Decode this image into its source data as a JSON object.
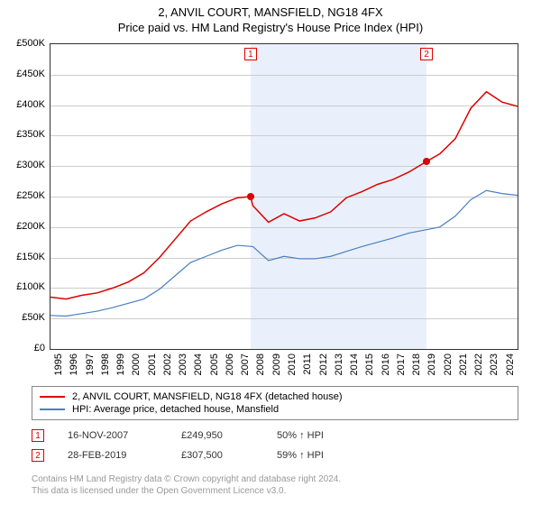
{
  "title": "2, ANVIL COURT, MANSFIELD, NG18 4FX",
  "subtitle": "Price paid vs. HM Land Registry's House Price Index (HPI)",
  "chart": {
    "type": "line",
    "ylim": [
      0,
      500000
    ],
    "ytick_step": 50000,
    "ytick_labels": [
      "£0",
      "£50K",
      "£100K",
      "£150K",
      "£200K",
      "£250K",
      "£300K",
      "£350K",
      "£400K",
      "£450K",
      "£500K"
    ],
    "xlim": [
      1995,
      2025
    ],
    "xtick_labels": [
      "1995",
      "1996",
      "1997",
      "1998",
      "1999",
      "2000",
      "2001",
      "2002",
      "2003",
      "2004",
      "2005",
      "2006",
      "2007",
      "2008",
      "2009",
      "2010",
      "2011",
      "2012",
      "2013",
      "2014",
      "2015",
      "2016",
      "2017",
      "2018",
      "2019",
      "2020",
      "2021",
      "2022",
      "2023",
      "2024"
    ],
    "shaded_ranges": [
      [
        2007.85,
        2019.15
      ]
    ],
    "grid_color": "#cccccc",
    "background_color": "#ffffff",
    "series": [
      {
        "name": "property",
        "color": "#dd0000",
        "width": 1.5,
        "data": [
          [
            1995,
            85000
          ],
          [
            1996,
            82000
          ],
          [
            1997,
            88000
          ],
          [
            1998,
            92000
          ],
          [
            1999,
            100000
          ],
          [
            2000,
            110000
          ],
          [
            2001,
            125000
          ],
          [
            2002,
            150000
          ],
          [
            2003,
            180000
          ],
          [
            2004,
            210000
          ],
          [
            2005,
            225000
          ],
          [
            2006,
            238000
          ],
          [
            2007,
            248000
          ],
          [
            2007.85,
            249950
          ],
          [
            2008,
            235000
          ],
          [
            2009,
            208000
          ],
          [
            2010,
            222000
          ],
          [
            2011,
            210000
          ],
          [
            2012,
            215000
          ],
          [
            2013,
            225000
          ],
          [
            2014,
            248000
          ],
          [
            2015,
            258000
          ],
          [
            2016,
            270000
          ],
          [
            2017,
            278000
          ],
          [
            2018,
            290000
          ],
          [
            2019.15,
            307500
          ],
          [
            2020,
            320000
          ],
          [
            2021,
            345000
          ],
          [
            2022,
            395000
          ],
          [
            2023,
            422000
          ],
          [
            2024,
            405000
          ],
          [
            2025,
            398000
          ]
        ]
      },
      {
        "name": "hpi",
        "color": "#4a7fc4",
        "width": 1.2,
        "data": [
          [
            1995,
            55000
          ],
          [
            1996,
            54000
          ],
          [
            1997,
            58000
          ],
          [
            1998,
            62000
          ],
          [
            1999,
            68000
          ],
          [
            2000,
            75000
          ],
          [
            2001,
            82000
          ],
          [
            2002,
            98000
          ],
          [
            2003,
            120000
          ],
          [
            2004,
            142000
          ],
          [
            2005,
            152000
          ],
          [
            2006,
            162000
          ],
          [
            2007,
            170000
          ],
          [
            2008,
            168000
          ],
          [
            2009,
            145000
          ],
          [
            2010,
            152000
          ],
          [
            2011,
            148000
          ],
          [
            2012,
            148000
          ],
          [
            2013,
            152000
          ],
          [
            2014,
            160000
          ],
          [
            2015,
            168000
          ],
          [
            2016,
            175000
          ],
          [
            2017,
            182000
          ],
          [
            2018,
            190000
          ],
          [
            2019,
            195000
          ],
          [
            2020,
            200000
          ],
          [
            2021,
            218000
          ],
          [
            2022,
            245000
          ],
          [
            2023,
            260000
          ],
          [
            2024,
            255000
          ],
          [
            2025,
            252000
          ]
        ]
      }
    ],
    "markers": [
      {
        "n": "1",
        "x": 2007.85,
        "y": 249950
      },
      {
        "n": "2",
        "x": 2019.15,
        "y": 307500
      }
    ]
  },
  "legend": {
    "items": [
      {
        "color": "#dd0000",
        "label": "2, ANVIL COURT, MANSFIELD, NG18 4FX (detached house)"
      },
      {
        "color": "#4a7fc4",
        "label": "HPI: Average price, detached house, Mansfield"
      }
    ]
  },
  "transactions": [
    {
      "n": "1",
      "date": "16-NOV-2007",
      "price": "£249,950",
      "delta": "50% ↑ HPI"
    },
    {
      "n": "2",
      "date": "28-FEB-2019",
      "price": "£307,500",
      "delta": "59% ↑ HPI"
    }
  ],
  "footnote_line1": "Contains HM Land Registry data © Crown copyright and database right 2024.",
  "footnote_line2": "This data is licensed under the Open Government Licence v3.0."
}
